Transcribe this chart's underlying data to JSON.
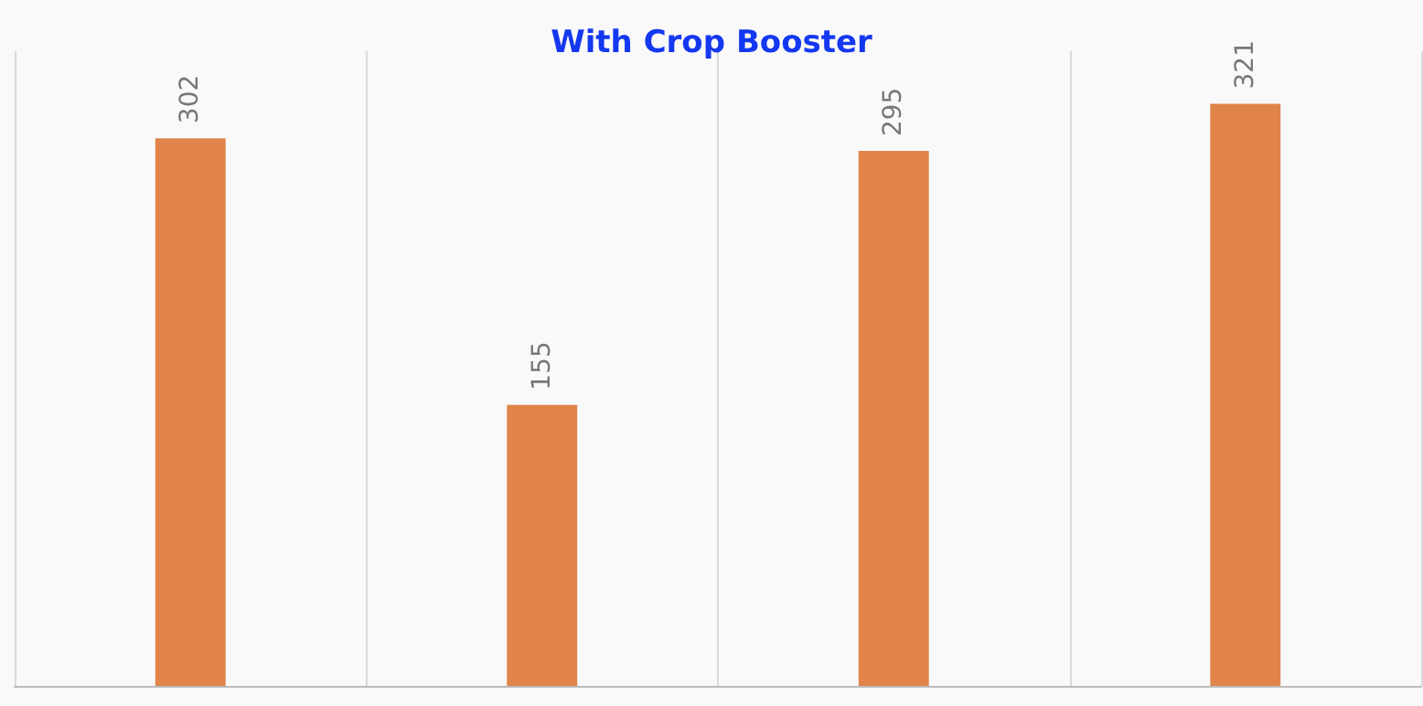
{
  "chart_data": {
    "type": "bar",
    "title": "With Crop Booster",
    "categories": [
      null,
      null,
      null,
      null
    ],
    "series": [
      {
        "color": "#e0844a",
        "values": [
          302,
          155,
          295,
          321
        ]
      }
    ],
    "data_labels": true,
    "grid": "x"
  }
}
